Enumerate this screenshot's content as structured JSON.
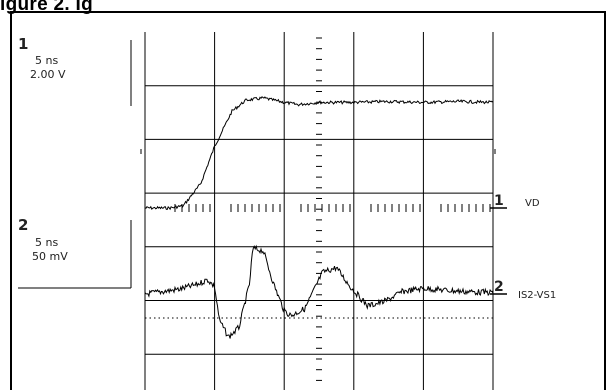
{
  "figure": {
    "title": "igure 2. Ig"
  },
  "channels": [
    {
      "number": "1",
      "timebase": "5 ns",
      "scale": "2.00 V"
    },
    {
      "number": "2",
      "timebase": "5 ns",
      "scale": "50 mV"
    }
  ],
  "markers": [
    {
      "number": "1",
      "label": "VD"
    },
    {
      "number": "2",
      "label": "IS2-VS1"
    }
  ],
  "chart_data": {
    "type": "line",
    "title": "",
    "xlabel": "",
    "ylabel": "",
    "grid": true,
    "divisions": {
      "x": 5,
      "y": 7
    },
    "series": [
      {
        "name": "VD",
        "x": [
          0,
          0.35,
          0.55,
          0.8,
          1.0,
          1.25,
          1.45,
          1.7,
          2.0,
          2.2,
          2.5,
          3.0,
          3.5,
          4.0,
          4.5,
          5.0
        ],
        "y": [
          0.0,
          0.0,
          0.05,
          0.55,
          1.4,
          2.2,
          2.45,
          2.5,
          2.4,
          2.35,
          2.4,
          2.4,
          2.42,
          2.4,
          2.42,
          2.4
        ]
      },
      {
        "name": "IS2-VS1",
        "x": [
          0,
          0.25,
          0.5,
          0.75,
          0.9,
          1.0,
          1.07,
          1.2,
          1.35,
          1.5,
          1.55,
          1.7,
          1.85,
          2.0,
          2.1,
          2.3,
          2.55,
          2.75,
          2.95,
          3.2,
          3.45,
          3.7,
          4.0,
          4.3,
          4.6,
          5.0
        ],
        "y": [
          0.0,
          0.05,
          0.1,
          0.2,
          0.3,
          0.15,
          -0.55,
          -0.9,
          -0.7,
          0.2,
          0.95,
          0.9,
          0.2,
          -0.35,
          -0.45,
          -0.3,
          0.45,
          0.55,
          0.15,
          -0.25,
          -0.15,
          0.05,
          0.12,
          0.08,
          0.05,
          0.03
        ]
      }
    ]
  }
}
